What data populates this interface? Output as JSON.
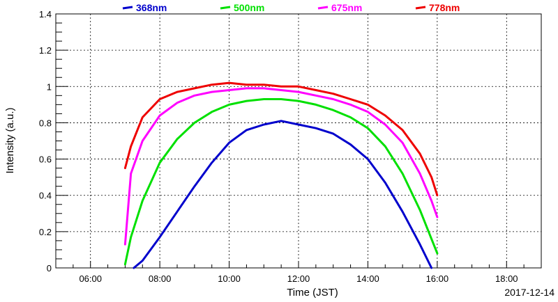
{
  "chart_data": {
    "type": "line",
    "xlabel": "Time (JST)",
    "ylabel": "Intensity (a.u.)",
    "date": "2017-12-14",
    "xlim": [
      "05:00",
      "19:00"
    ],
    "ylim": [
      0,
      1.4
    ],
    "x_ticks": [
      "06:00",
      "08:00",
      "10:00",
      "12:00",
      "14:00",
      "16:00",
      "18:00"
    ],
    "y_ticks": [
      "0",
      "0.2",
      "0.4",
      "0.6",
      "0.8",
      "1",
      "1.2",
      "1.4"
    ],
    "y_tick_values": [
      0,
      0.2,
      0.4,
      0.6,
      0.8,
      1.0,
      1.2,
      1.4
    ],
    "grid": true,
    "legend_position": "top",
    "series": [
      {
        "name": "368nm",
        "color": "#0000cc",
        "x": [
          "07:15",
          "07:30",
          "08:00",
          "08:30",
          "09:00",
          "09:30",
          "10:00",
          "10:30",
          "11:00",
          "11:30",
          "12:00",
          "12:30",
          "13:00",
          "13:30",
          "14:00",
          "14:30",
          "15:00",
          "15:30",
          "15:50"
        ],
        "y": [
          0.0,
          0.04,
          0.17,
          0.31,
          0.45,
          0.58,
          0.69,
          0.76,
          0.79,
          0.81,
          0.79,
          0.77,
          0.74,
          0.68,
          0.6,
          0.47,
          0.31,
          0.13,
          0.0
        ]
      },
      {
        "name": "500nm",
        "color": "#00e000",
        "x": [
          "07:00",
          "07:10",
          "07:30",
          "08:00",
          "08:30",
          "09:00",
          "09:30",
          "10:00",
          "10:30",
          "11:00",
          "11:30",
          "12:00",
          "12:30",
          "13:00",
          "13:30",
          "14:00",
          "14:30",
          "15:00",
          "15:30",
          "15:50",
          "16:00"
        ],
        "y": [
          0.02,
          0.17,
          0.37,
          0.58,
          0.71,
          0.8,
          0.86,
          0.9,
          0.92,
          0.93,
          0.93,
          0.92,
          0.9,
          0.87,
          0.83,
          0.77,
          0.67,
          0.52,
          0.32,
          0.16,
          0.08
        ]
      },
      {
        "name": "675nm",
        "color": "#ff00ff",
        "x": [
          "07:00",
          "07:10",
          "07:30",
          "08:00",
          "08:30",
          "09:00",
          "09:30",
          "10:00",
          "10:30",
          "11:00",
          "11:30",
          "12:00",
          "12:30",
          "13:00",
          "13:30",
          "14:00",
          "14:30",
          "15:00",
          "15:30",
          "15:50",
          "16:00"
        ],
        "y": [
          0.13,
          0.52,
          0.7,
          0.84,
          0.91,
          0.95,
          0.97,
          0.98,
          0.99,
          0.99,
          0.98,
          0.97,
          0.95,
          0.93,
          0.9,
          0.86,
          0.79,
          0.69,
          0.52,
          0.37,
          0.28
        ]
      },
      {
        "name": "778nm",
        "color": "#ee0000",
        "x": [
          "07:00",
          "07:10",
          "07:30",
          "08:00",
          "08:30",
          "09:00",
          "09:30",
          "10:00",
          "10:30",
          "11:00",
          "11:30",
          "12:00",
          "12:30",
          "13:00",
          "13:30",
          "14:00",
          "14:30",
          "15:00",
          "15:30",
          "15:50",
          "16:00"
        ],
        "y": [
          0.55,
          0.67,
          0.83,
          0.93,
          0.97,
          0.99,
          1.01,
          1.02,
          1.01,
          1.01,
          1.0,
          1.0,
          0.98,
          0.96,
          0.93,
          0.9,
          0.84,
          0.76,
          0.63,
          0.5,
          0.4
        ]
      }
    ]
  }
}
